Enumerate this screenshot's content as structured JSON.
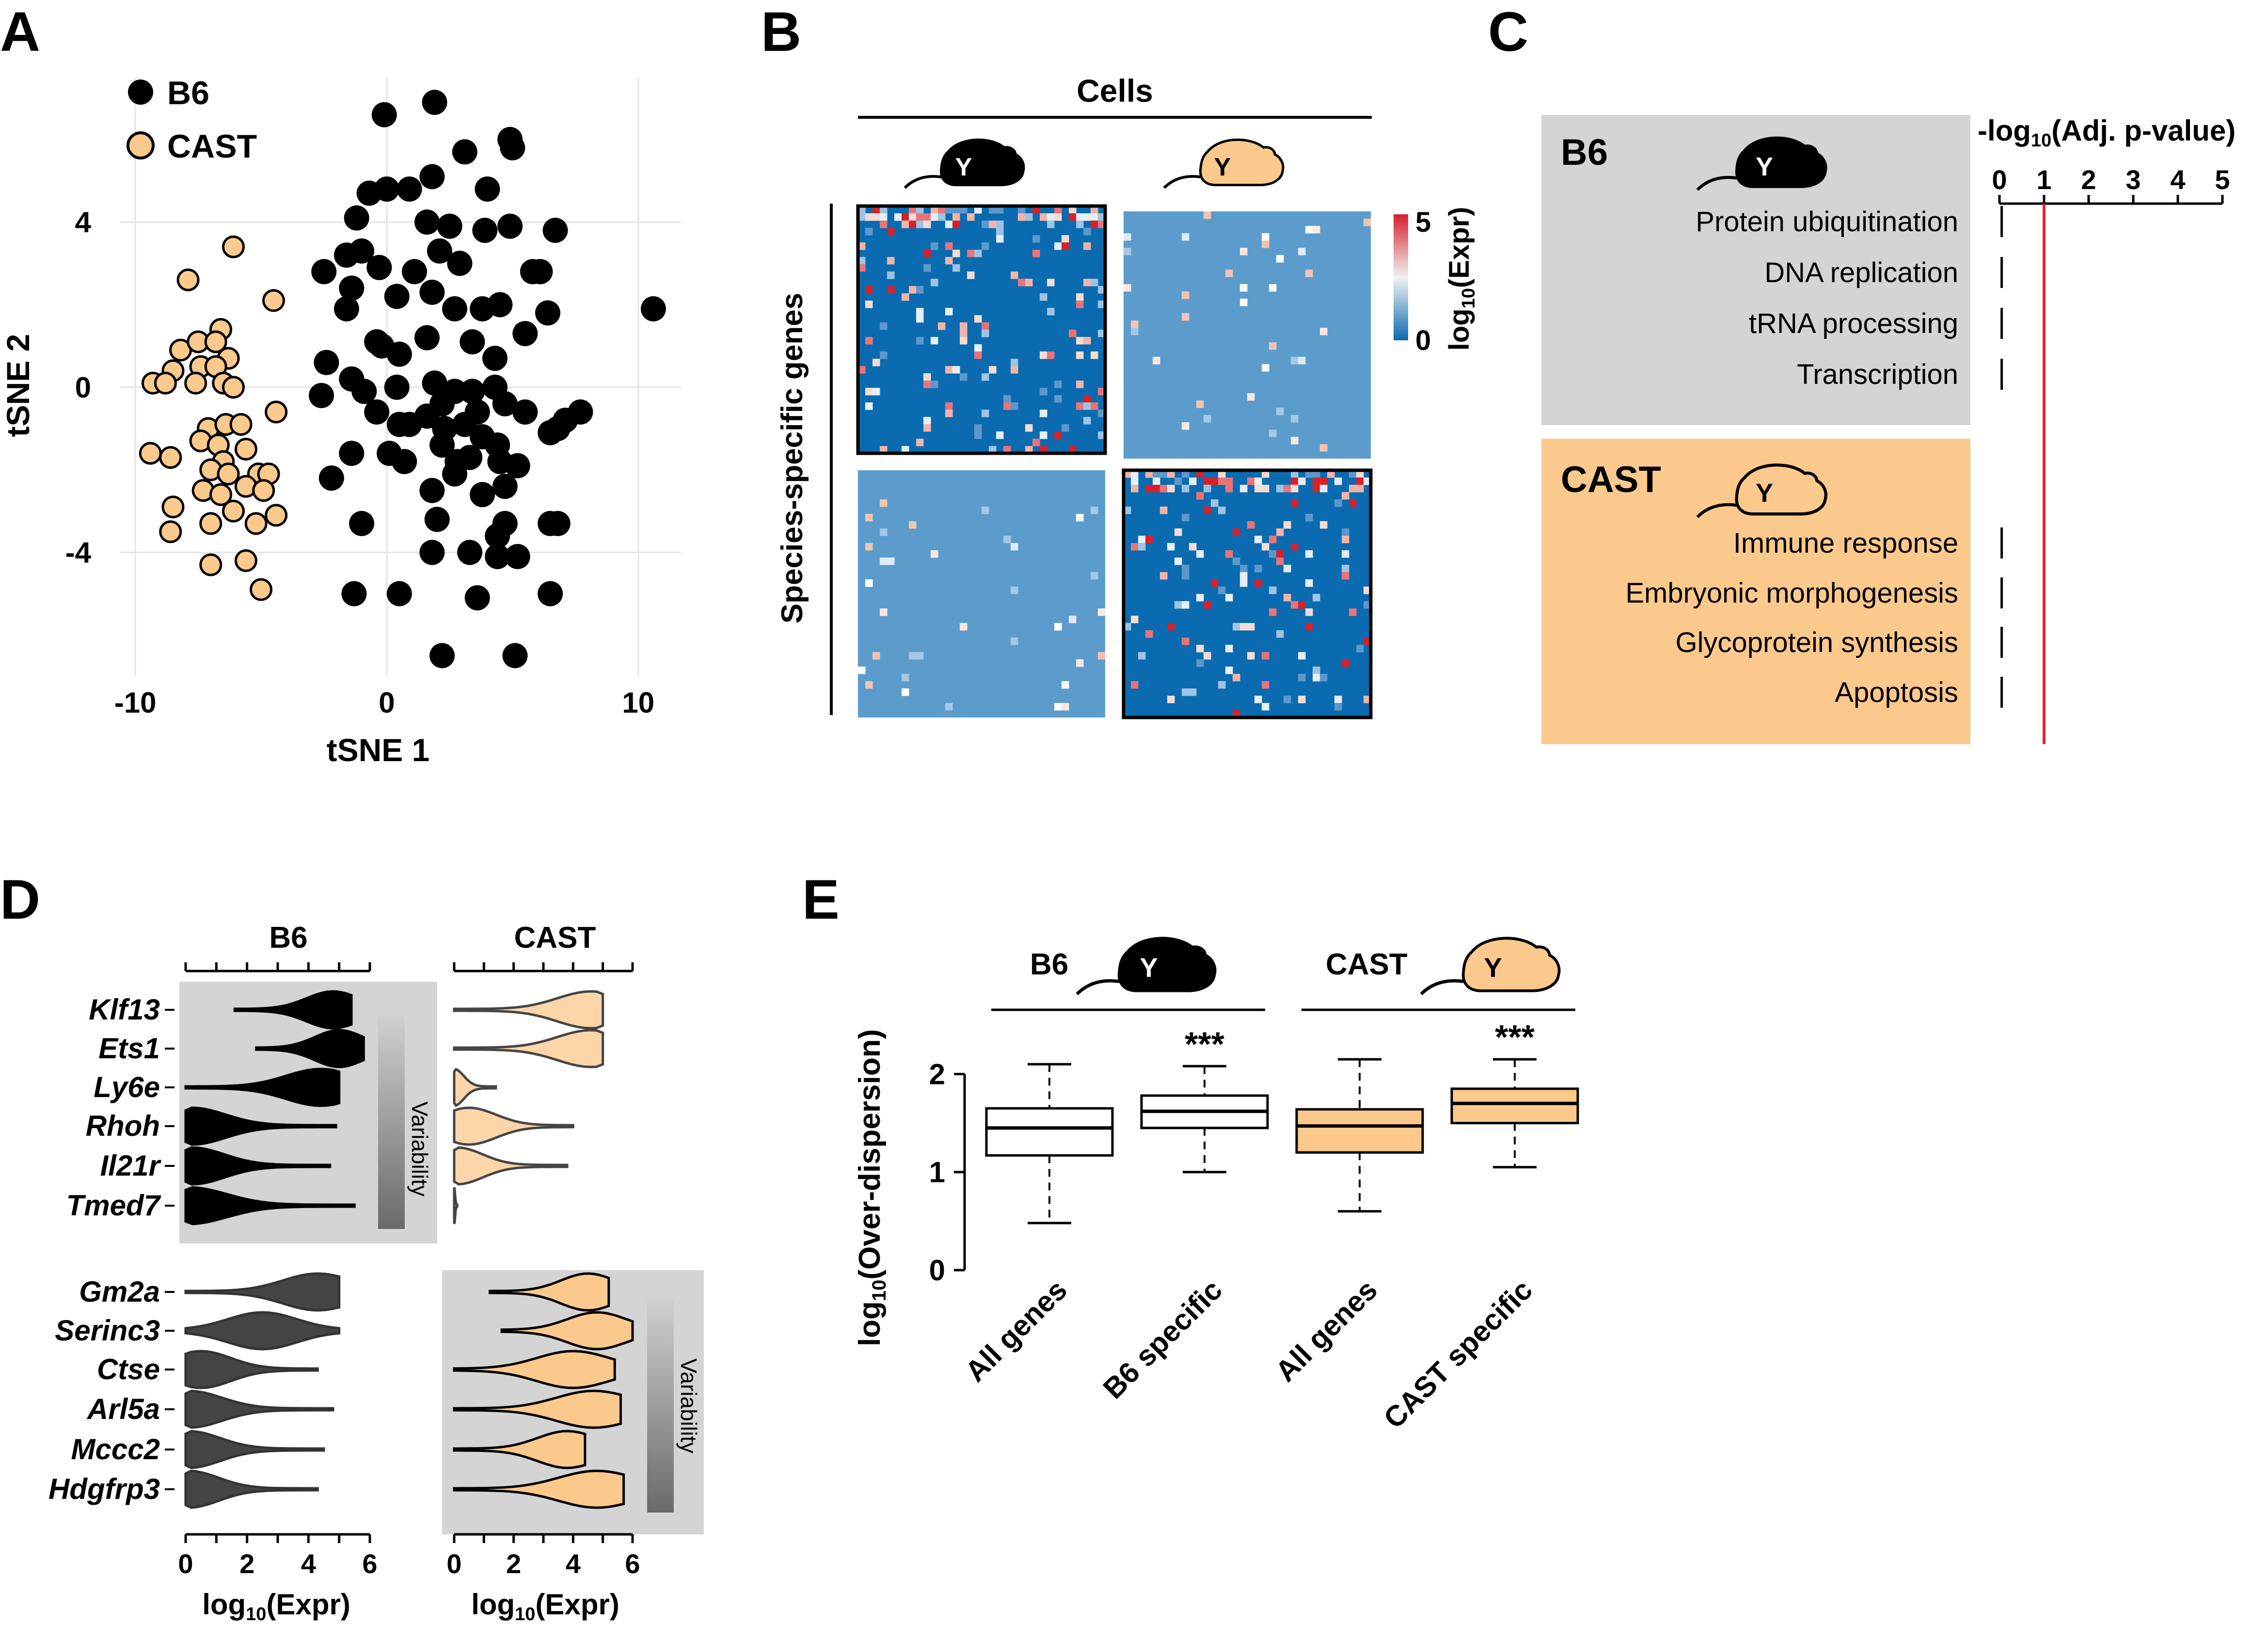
{
  "chart_data": [
    {
      "panel": "A",
      "type": "scatter",
      "xlabel": "tSNE 1",
      "ylabel": "tSNE 2",
      "xlim": [
        -10.6,
        11.7
      ],
      "ylim": [
        -7.0,
        7.5
      ],
      "xticks": [
        -10,
        0,
        10
      ],
      "yticks": [
        -4,
        0,
        4
      ],
      "grid": true,
      "legend_position": "top-left",
      "colors": {
        "B6": "#000000",
        "CAST": "#fcc98c"
      },
      "series": [
        {
          "name": "B6",
          "points": [
            [
              1.9,
              6.9
            ],
            [
              -0.1,
              6.6
            ],
            [
              4.9,
              6.0
            ],
            [
              5.0,
              5.8
            ],
            [
              3.1,
              5.7
            ],
            [
              1.8,
              5.1
            ],
            [
              -0.7,
              4.7
            ],
            [
              0.0,
              4.8
            ],
            [
              0.9,
              4.8
            ],
            [
              4.0,
              4.8
            ],
            [
              -1.2,
              4.1
            ],
            [
              1.6,
              4.0
            ],
            [
              2.5,
              3.9
            ],
            [
              3.9,
              3.8
            ],
            [
              4.9,
              3.9
            ],
            [
              6.7,
              3.8
            ],
            [
              -1.0,
              3.3
            ],
            [
              -1.6,
              3.2
            ],
            [
              2.1,
              3.3
            ],
            [
              -2.5,
              2.8
            ],
            [
              -0.3,
              2.9
            ],
            [
              1.1,
              2.8
            ],
            [
              2.9,
              3.0
            ],
            [
              5.8,
              2.8
            ],
            [
              6.1,
              2.8
            ],
            [
              -1.4,
              2.4
            ],
            [
              0.4,
              2.2
            ],
            [
              1.8,
              2.3
            ],
            [
              -1.6,
              1.9
            ],
            [
              2.7,
              1.9
            ],
            [
              3.8,
              1.9
            ],
            [
              4.5,
              2.0
            ],
            [
              10.6,
              1.9
            ],
            [
              -0.4,
              1.1
            ],
            [
              1.6,
              1.2
            ],
            [
              3.4,
              1.1
            ],
            [
              5.5,
              1.3
            ],
            [
              6.4,
              1.8
            ],
            [
              -2.4,
              0.6
            ],
            [
              -0.2,
              1.0
            ],
            [
              0.5,
              0.8
            ],
            [
              4.3,
              0.7
            ],
            [
              -1.4,
              0.2
            ],
            [
              -0.9,
              -0.1
            ],
            [
              0.4,
              0.0
            ],
            [
              1.9,
              0.1
            ],
            [
              2.7,
              -0.1
            ],
            [
              3.4,
              -0.1
            ],
            [
              4.3,
              0.0
            ],
            [
              -2.6,
              -0.2
            ],
            [
              -0.4,
              -0.6
            ],
            [
              2.2,
              -0.4
            ],
            [
              4.7,
              -0.4
            ],
            [
              7.7,
              -0.6
            ],
            [
              1.6,
              -0.7
            ],
            [
              3.6,
              -0.6
            ],
            [
              5.5,
              -0.6
            ],
            [
              7.1,
              -0.8
            ],
            [
              0.5,
              -0.9
            ],
            [
              0.9,
              -0.9
            ],
            [
              2.3,
              -1.0
            ],
            [
              3.1,
              -0.9
            ],
            [
              6.8,
              -1.0
            ],
            [
              3.8,
              -1.2
            ],
            [
              6.5,
              -1.1
            ],
            [
              -1.4,
              -1.6
            ],
            [
              0.1,
              -1.6
            ],
            [
              2.2,
              -1.4
            ],
            [
              4.4,
              -1.4
            ],
            [
              0.7,
              -1.8
            ],
            [
              2.8,
              -1.8
            ],
            [
              3.3,
              -1.7
            ],
            [
              4.5,
              -1.8
            ],
            [
              5.2,
              -1.9
            ],
            [
              2.7,
              -2.1
            ],
            [
              -2.2,
              -2.2
            ],
            [
              1.8,
              -2.5
            ],
            [
              3.8,
              -2.6
            ],
            [
              4.7,
              -2.4
            ],
            [
              -1.0,
              -3.3
            ],
            [
              2.0,
              -3.2
            ],
            [
              4.7,
              -3.3
            ],
            [
              6.5,
              -3.3
            ],
            [
              6.8,
              -3.3
            ],
            [
              4.4,
              -3.6
            ],
            [
              1.8,
              -4.0
            ],
            [
              3.3,
              -4.0
            ],
            [
              4.4,
              -4.1
            ],
            [
              5.2,
              -4.1
            ],
            [
              -1.3,
              -5.0
            ],
            [
              0.5,
              -5.0
            ],
            [
              3.6,
              -5.1
            ],
            [
              6.5,
              -5.0
            ],
            [
              2.2,
              -6.5
            ],
            [
              5.1,
              -6.5
            ]
          ]
        },
        {
          "name": "CAST",
          "points": [
            [
              -6.1,
              3.4
            ],
            [
              -7.9,
              2.6
            ],
            [
              -4.5,
              2.1
            ],
            [
              -6.6,
              1.4
            ],
            [
              -8.2,
              0.9
            ],
            [
              -7.5,
              1.1
            ],
            [
              -6.8,
              1.1
            ],
            [
              -6.3,
              0.7
            ],
            [
              -8.5,
              0.4
            ],
            [
              -7.4,
              0.5
            ],
            [
              -6.8,
              0.5
            ],
            [
              -9.3,
              0.1
            ],
            [
              -8.8,
              0.1
            ],
            [
              -7.6,
              0.1
            ],
            [
              -6.5,
              0.1
            ],
            [
              -6.1,
              0.0
            ],
            [
              -4.4,
              -0.6
            ],
            [
              -7.1,
              -1.0
            ],
            [
              -6.4,
              -0.9
            ],
            [
              -5.8,
              -0.9
            ],
            [
              -7.4,
              -1.3
            ],
            [
              -6.7,
              -1.4
            ],
            [
              -9.4,
              -1.6
            ],
            [
              -5.6,
              -1.5
            ],
            [
              -8.6,
              -1.7
            ],
            [
              -6.5,
              -1.8
            ],
            [
              -7.0,
              -2.0
            ],
            [
              -6.3,
              -2.1
            ],
            [
              -5.1,
              -2.1
            ],
            [
              -4.7,
              -2.1
            ],
            [
              -5.6,
              -2.4
            ],
            [
              -7.3,
              -2.5
            ],
            [
              -6.6,
              -2.6
            ],
            [
              -4.9,
              -2.5
            ],
            [
              -8.5,
              -2.9
            ],
            [
              -6.1,
              -3.0
            ],
            [
              -4.4,
              -3.1
            ],
            [
              -8.6,
              -3.5
            ],
            [
              -7.0,
              -3.3
            ],
            [
              -5.2,
              -3.3
            ],
            [
              -5.6,
              -4.2
            ],
            [
              -7.0,
              -4.3
            ],
            [
              -5.0,
              -4.9
            ]
          ]
        }
      ]
    },
    {
      "panel": "B",
      "type": "heatmap",
      "top_label": "Cells",
      "side_label": "Species-specific genes",
      "colorbar_label": "log10(Expr)",
      "colorbar_range": [
        0,
        5
      ],
      "blocks": [
        {
          "cells": "B6",
          "genes": "B6-specific",
          "level": "high, variable"
        },
        {
          "cells": "CAST",
          "genes": "B6-specific",
          "level": "low"
        },
        {
          "cells": "B6",
          "genes": "CAST-specific",
          "level": "low"
        },
        {
          "cells": "CAST",
          "genes": "CAST-specific",
          "level": "high, variable"
        }
      ]
    },
    {
      "panel": "C",
      "type": "bar",
      "xlabel": "-log10(Adj. p-value)",
      "xlim": [
        0,
        5
      ],
      "xticks": [
        0,
        1,
        2,
        3,
        4,
        5
      ],
      "threshold": 1,
      "groups": [
        {
          "name": "B6",
          "color": "#d4d4d4",
          "terms": [
            "Protein ubiquitination",
            "DNA replication",
            "tRNA processing",
            "Transcription"
          ]
        },
        {
          "name": "CAST",
          "color": "#fcc98c",
          "terms": [
            "Immune response",
            "Embryonic morphogenesis",
            "Glycoprotein synthesis",
            "Apoptosis"
          ]
        }
      ]
    },
    {
      "panel": "D",
      "type": "violin",
      "xlabel": "log10(Expr)",
      "xlim": [
        0,
        6
      ],
      "xticks": [
        0,
        2,
        4,
        6
      ],
      "columns": [
        "B6",
        "CAST"
      ],
      "annotation": "Variability",
      "groups": [
        {
          "genes": [
            "Klf13",
            "Ets1",
            "Ly6e",
            "Rhoh",
            "Il21r",
            "Tmed7"
          ],
          "B6": [
            [
              1.6,
              5.4,
              4.8
            ],
            [
              2.3,
              5.8,
              5.0
            ],
            [
              0.0,
              5.0,
              4.4
            ],
            [
              0.0,
              4.9,
              0.2
            ],
            [
              0.0,
              4.7,
              0.2
            ],
            [
              0.0,
              5.5,
              0.1
            ]
          ],
          "CAST": [
            [
              0.0,
              5.0,
              4.6
            ],
            [
              0.0,
              5.0,
              4.6
            ],
            [
              0.0,
              1.4,
              0.0
            ],
            [
              0.0,
              4.0,
              0.5
            ],
            [
              0.0,
              3.8,
              0.1
            ],
            [
              0.0,
              0.1,
              0.0
            ]
          ]
        },
        {
          "genes": [
            "Gm2a",
            "Serinc3",
            "Ctse",
            "Arl5a",
            "Mccc2",
            "Hdgfrp3"
          ],
          "B6": [
            [
              0.0,
              5.0,
              4.3
            ],
            [
              0.0,
              5.0,
              2.5
            ],
            [
              0.0,
              4.3,
              0.5
            ],
            [
              0.0,
              4.8,
              0.1
            ],
            [
              0.0,
              4.5,
              0.1
            ],
            [
              0.0,
              4.3,
              0.1
            ]
          ],
          "CAST": [
            [
              1.2,
              5.2,
              4.5
            ],
            [
              1.6,
              6.0,
              4.8
            ],
            [
              0.0,
              5.4,
              4.0
            ],
            [
              0.0,
              5.6,
              4.7
            ],
            [
              0.0,
              4.4,
              3.8
            ],
            [
              0.0,
              5.7,
              4.8
            ]
          ]
        }
      ]
    },
    {
      "panel": "E",
      "type": "boxplot",
      "ylabel": "log10(Over-dispersion)",
      "ylim": [
        0,
        2.2
      ],
      "yticks": [
        0,
        1,
        2
      ],
      "groups": [
        "B6",
        "CAST"
      ],
      "boxes": [
        {
          "label": "All genes",
          "group": "B6",
          "min": 0.48,
          "q1": 1.17,
          "median": 1.45,
          "q3": 1.65,
          "max": 2.1,
          "fill": "#ffffff",
          "signif": ""
        },
        {
          "label": "B6 specific",
          "group": "B6",
          "min": 1.0,
          "q1": 1.45,
          "median": 1.62,
          "q3": 1.78,
          "max": 2.08,
          "fill": "#ffffff",
          "signif": "***"
        },
        {
          "label": "All genes",
          "group": "CAST",
          "min": 0.6,
          "q1": 1.2,
          "median": 1.47,
          "q3": 1.64,
          "max": 2.15,
          "fill": "#fcc98c",
          "signif": ""
        },
        {
          "label": "CAST specific",
          "group": "CAST",
          "min": 1.05,
          "q1": 1.5,
          "median": 1.7,
          "q3": 1.85,
          "max": 2.15,
          "fill": "#fcc98c",
          "signif": "***"
        }
      ]
    }
  ]
}
